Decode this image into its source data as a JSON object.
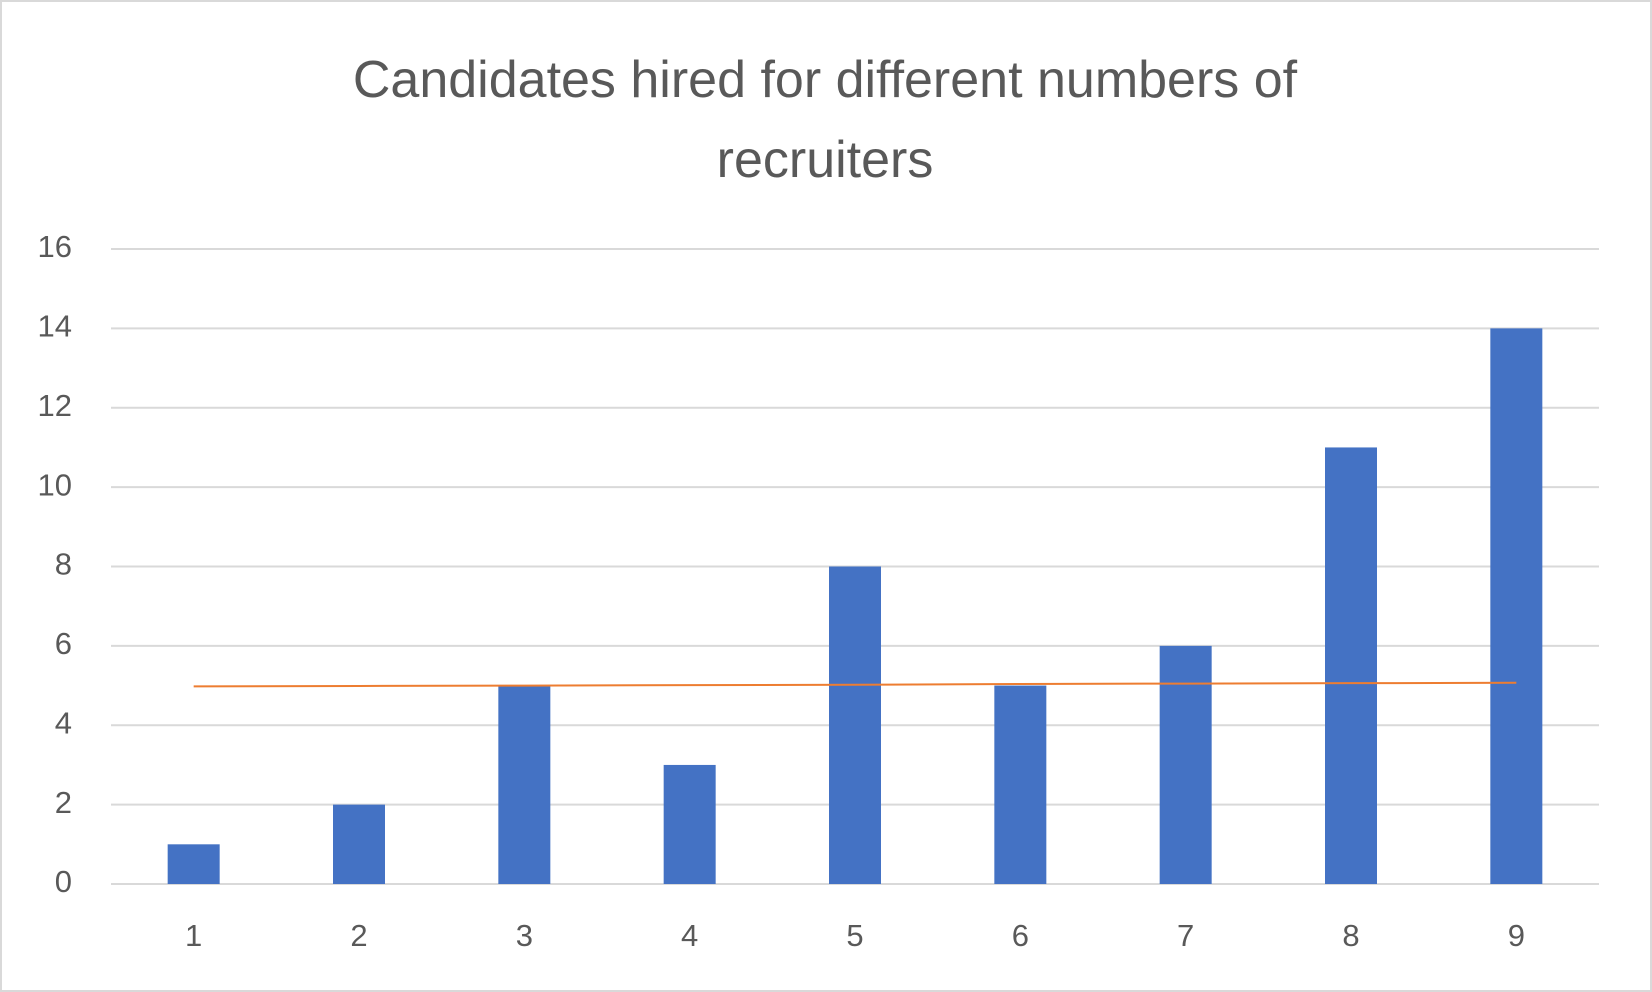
{
  "chart_data": {
    "type": "bar",
    "title": "Candidates hired for different numbers of recruiters",
    "categories": [
      "1",
      "2",
      "3",
      "4",
      "5",
      "6",
      "7",
      "8",
      "9"
    ],
    "values": [
      1,
      2,
      5,
      3,
      8,
      5,
      6,
      11,
      14
    ],
    "color": "#4472c4",
    "trendline": {
      "color": "#ed7d31",
      "values": [
        4.98,
        4.99,
        5.0,
        5.01,
        5.02,
        5.04,
        5.05,
        5.06,
        5.07
      ]
    },
    "ylim": [
      0,
      16
    ],
    "yticks": [
      0,
      2,
      4,
      6,
      8,
      10,
      12,
      14,
      16
    ],
    "grid": true
  }
}
